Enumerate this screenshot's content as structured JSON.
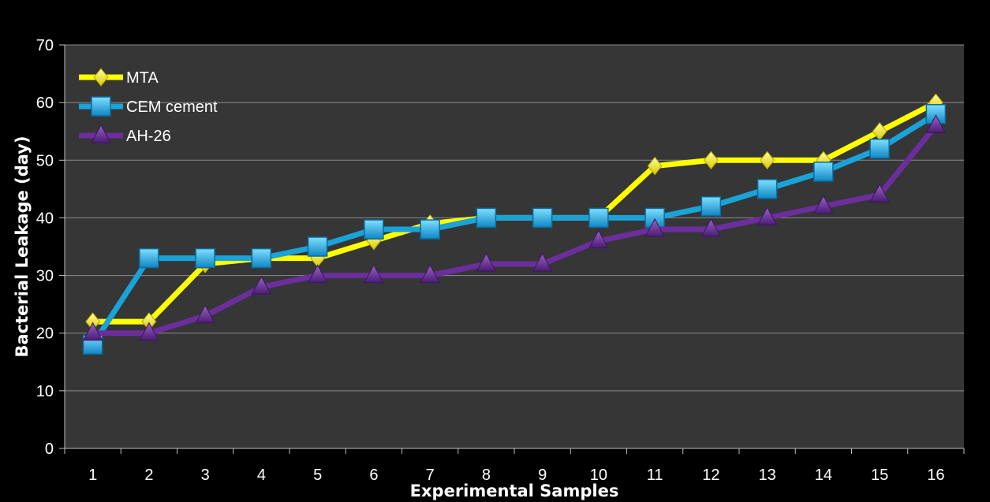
{
  "chart_data": {
    "type": "line",
    "title": "",
    "xlabel": "Experimental Samples",
    "ylabel": "Bacterial Leakage (day)",
    "categories": [
      "1",
      "2",
      "3",
      "4",
      "5",
      "6",
      "7",
      "8",
      "9",
      "10",
      "11",
      "12",
      "13",
      "14",
      "15",
      "16"
    ],
    "ylim": [
      0,
      70
    ],
    "yticks": [
      0,
      10,
      20,
      30,
      40,
      50,
      60,
      70
    ],
    "grid": true,
    "legend_position": "top-left",
    "background": "#363636",
    "series": [
      {
        "name": "MTA",
        "color": "#ffff00",
        "marker": "diamond",
        "values": [
          22,
          22,
          32,
          33,
          33,
          36,
          39,
          40,
          40,
          40,
          49,
          50,
          50,
          50,
          55,
          60
        ]
      },
      {
        "name": "CEM cement",
        "color": "#1aa3d9",
        "marker": "square",
        "values": [
          18,
          33,
          33,
          33,
          35,
          38,
          38,
          40,
          40,
          40,
          40,
          42,
          45,
          48,
          52,
          58
        ]
      },
      {
        "name": "AH-26",
        "color": "#6b2e9c",
        "marker": "triangle",
        "values": [
          20,
          20,
          23,
          28,
          30,
          30,
          30,
          32,
          32,
          36,
          38,
          38,
          40,
          42,
          44,
          56
        ]
      }
    ]
  }
}
